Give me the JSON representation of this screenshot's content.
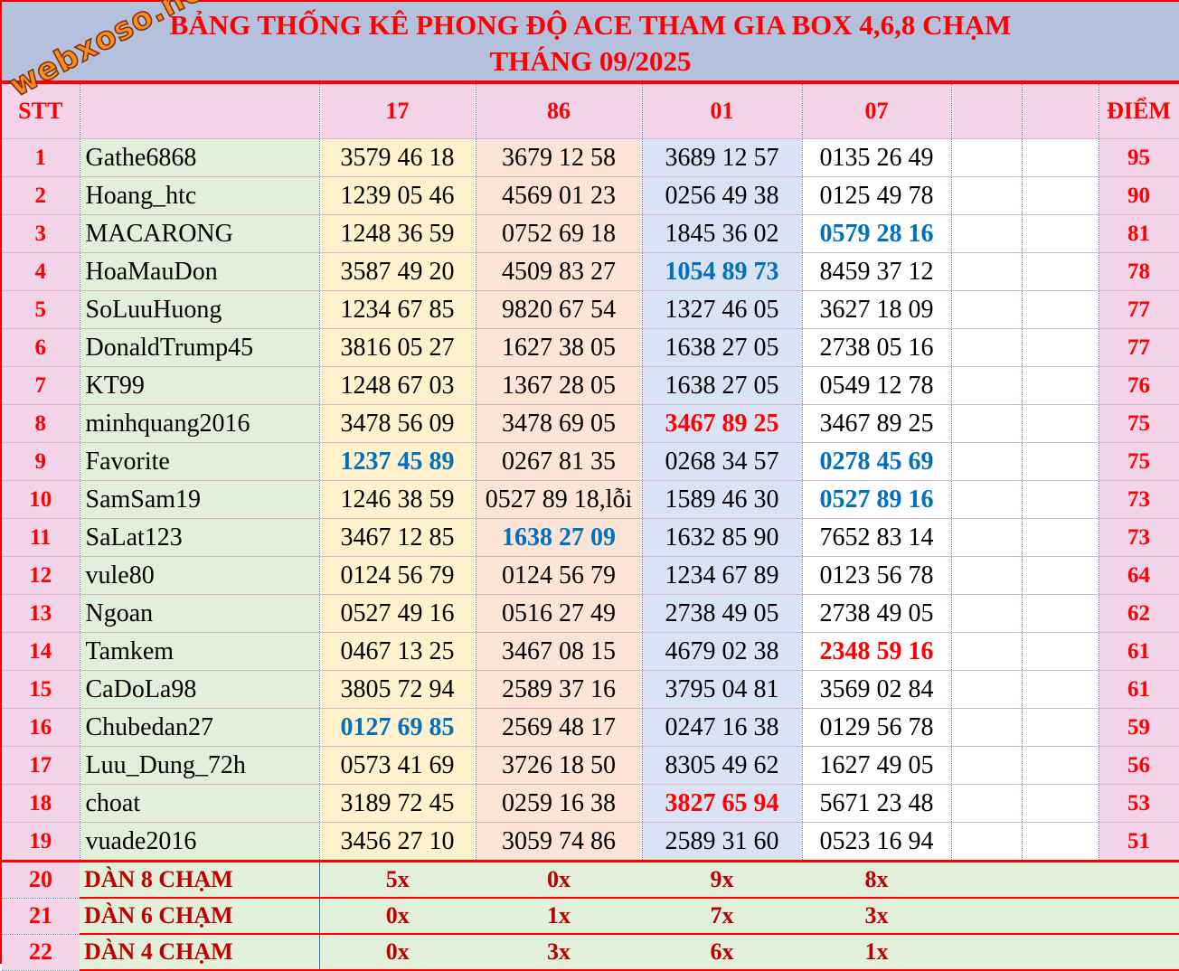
{
  "title": {
    "line1": "BẢNG THỐNG KÊ PHONG ĐỘ ACE THAM GIA BOX 4,6,8 CHẠM",
    "line2": "THÁNG 09/2025",
    "watermark": "webxoso.net"
  },
  "header": {
    "stt": "STT",
    "name": "",
    "cols": [
      "17",
      "86",
      "01",
      "07"
    ],
    "points": "ĐIỂM"
  },
  "colors": {
    "blue": "#0070c0",
    "red": "#ff0000"
  },
  "rows": [
    {
      "stt": "1",
      "name": "Gathe6868",
      "cells": [
        [
          "3579 46 18",
          ""
        ],
        [
          "3679 12 58",
          ""
        ],
        [
          "3689 12 57",
          ""
        ],
        [
          "0135 26 49",
          ""
        ]
      ],
      "points": "95"
    },
    {
      "stt": "2",
      "name": "Hoang_htc",
      "cells": [
        [
          "1239 05 46",
          ""
        ],
        [
          "4569 01 23",
          ""
        ],
        [
          "0256 49 38",
          ""
        ],
        [
          "0125 49 78",
          ""
        ]
      ],
      "points": "90"
    },
    {
      "stt": "3",
      "name": "MACARONG",
      "cells": [
        [
          "1248 36 59",
          ""
        ],
        [
          "0752 69 18",
          ""
        ],
        [
          "1845 36 02",
          ""
        ],
        [
          "0579 28 16",
          "b"
        ]
      ],
      "points": "81"
    },
    {
      "stt": "4",
      "name": "HoaMauDon",
      "cells": [
        [
          "3587 49 20",
          ""
        ],
        [
          "4509 83 27",
          ""
        ],
        [
          "1054 89 73",
          "b"
        ],
        [
          "8459 37 12",
          ""
        ]
      ],
      "points": "78"
    },
    {
      "stt": "5",
      "name": "SoLuuHuong",
      "cells": [
        [
          "1234 67 85",
          ""
        ],
        [
          "9820 67 54",
          ""
        ],
        [
          "1327 46 05",
          ""
        ],
        [
          "3627 18 09",
          ""
        ]
      ],
      "points": "77"
    },
    {
      "stt": "6",
      "name": "DonaldTrump45",
      "cells": [
        [
          "3816 05 27",
          ""
        ],
        [
          "1627 38 05",
          ""
        ],
        [
          "1638 27 05",
          ""
        ],
        [
          "2738 05 16",
          ""
        ]
      ],
      "points": "77"
    },
    {
      "stt": "7",
      "name": "KT99",
      "cells": [
        [
          "1248 67 03",
          ""
        ],
        [
          "1367 28 05",
          ""
        ],
        [
          "1638 27 05",
          ""
        ],
        [
          "0549 12 78",
          ""
        ]
      ],
      "points": "76"
    },
    {
      "stt": "8",
      "name": "minhquang2016",
      "cells": [
        [
          "3478 56 09",
          ""
        ],
        [
          "3478 69 05",
          ""
        ],
        [
          "3467 89 25",
          "r"
        ],
        [
          "3467 89 25",
          ""
        ]
      ],
      "points": "75"
    },
    {
      "stt": "9",
      "name": "Favorite",
      "cells": [
        [
          "1237 45 89",
          "b"
        ],
        [
          "0267 81 35",
          ""
        ],
        [
          "0268 34 57",
          ""
        ],
        [
          "0278 45 69",
          "b"
        ]
      ],
      "points": "75"
    },
    {
      "stt": "10",
      "name": "SamSam19",
      "cells": [
        [
          "1246 38 59",
          ""
        ],
        [
          "0527 89 18,lỗi",
          ""
        ],
        [
          "1589 46 30",
          ""
        ],
        [
          "0527 89 16",
          "b"
        ]
      ],
      "points": "73"
    },
    {
      "stt": "11",
      "name": "SaLat123",
      "cells": [
        [
          "3467 12 85",
          ""
        ],
        [
          "1638 27 09",
          "b"
        ],
        [
          "1632 85 90",
          ""
        ],
        [
          "7652 83 14",
          ""
        ]
      ],
      "points": "73"
    },
    {
      "stt": "12",
      "name": "vule80",
      "cells": [
        [
          "0124 56 79",
          ""
        ],
        [
          "0124 56 79",
          ""
        ],
        [
          "1234 67 89",
          ""
        ],
        [
          "0123 56 78",
          ""
        ]
      ],
      "points": "64"
    },
    {
      "stt": "13",
      "name": "Ngoan",
      "cells": [
        [
          "0527 49 16",
          ""
        ],
        [
          "0516 27 49",
          ""
        ],
        [
          "2738 49 05",
          ""
        ],
        [
          "2738 49 05",
          ""
        ]
      ],
      "points": "62"
    },
    {
      "stt": "14",
      "name": "Tamkem",
      "cells": [
        [
          "0467 13 25",
          ""
        ],
        [
          "3467 08 15",
          ""
        ],
        [
          "4679 02 38",
          ""
        ],
        [
          "2348 59 16",
          "r"
        ]
      ],
      "points": "61"
    },
    {
      "stt": "15",
      "name": "CaDoLa98",
      "cells": [
        [
          "3805 72 94",
          ""
        ],
        [
          "2589 37 16",
          ""
        ],
        [
          "3795 04 81",
          ""
        ],
        [
          "3569 02 84",
          ""
        ]
      ],
      "points": "61"
    },
    {
      "stt": "16",
      "name": "Chubedan27",
      "cells": [
        [
          "0127 69 85",
          "b"
        ],
        [
          "2569 48 17",
          ""
        ],
        [
          "0247 16 38",
          ""
        ],
        [
          "0129 56 78",
          ""
        ]
      ],
      "points": "59"
    },
    {
      "stt": "17",
      "name": "Luu_Dung_72h",
      "cells": [
        [
          "0573 41 69",
          ""
        ],
        [
          "3726 18 50",
          ""
        ],
        [
          "8305 49 62",
          ""
        ],
        [
          "1627 49 05",
          ""
        ]
      ],
      "points": "56"
    },
    {
      "stt": "18",
      "name": "choat",
      "cells": [
        [
          "3189 72 45",
          ""
        ],
        [
          "0259 16 38",
          ""
        ],
        [
          "3827 65 94",
          "r"
        ],
        [
          "5671 23 48",
          ""
        ]
      ],
      "points": "53"
    },
    {
      "stt": "19",
      "name": "vuade2016",
      "cells": [
        [
          "3456 27 10",
          ""
        ],
        [
          "3059 74 86",
          ""
        ],
        [
          "2589 31 60",
          ""
        ],
        [
          "0523 16 94",
          ""
        ]
      ],
      "points": "51"
    }
  ],
  "summary": [
    {
      "stt": "20",
      "label": "DÀN 8 CHẠM",
      "values": [
        "5x",
        "0x",
        "9x",
        "8x"
      ]
    },
    {
      "stt": "21",
      "label": "DÀN 6 CHẠM",
      "values": [
        "0x",
        "1x",
        "7x",
        "3x"
      ]
    },
    {
      "stt": "22",
      "label": "DÀN 4 CHẠM",
      "values": [
        "0x",
        "3x",
        "6x",
        "1x"
      ]
    }
  ]
}
